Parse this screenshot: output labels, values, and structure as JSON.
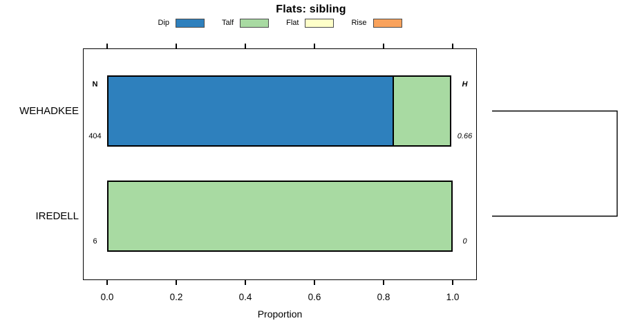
{
  "chart_data": {
    "type": "bar",
    "orientation": "horizontal",
    "stacked": true,
    "title": "Flats: sibling",
    "xlabel": "Proportion",
    "xlim": [
      0,
      1
    ],
    "xticks": [
      "0.0",
      "0.2",
      "0.4",
      "0.6",
      "0.8",
      "1.0"
    ],
    "grid": false,
    "legend_position": "top-center",
    "categories": [
      "WEHADKEE",
      "IREDELL"
    ],
    "legend": [
      {
        "label": "Dip",
        "color": "#2e80bd"
      },
      {
        "label": "Talf",
        "color": "#a8daa2"
      },
      {
        "label": "Flat",
        "color": "#feffc9"
      },
      {
        "label": "Rise",
        "color": "#f9a25c"
      }
    ],
    "series": [
      {
        "name": "Dip",
        "values": [
          0.83,
          0
        ]
      },
      {
        "name": "Talf",
        "values": [
          0.17,
          1.0
        ]
      },
      {
        "name": "Flat",
        "values": [
          0,
          0
        ]
      },
      {
        "name": "Rise",
        "values": [
          0,
          0
        ]
      }
    ],
    "row_stats": {
      "n_header": "N",
      "h_header": "H",
      "n_values": [
        "404",
        "6"
      ],
      "h_values": [
        "0.66",
        "0"
      ]
    }
  }
}
